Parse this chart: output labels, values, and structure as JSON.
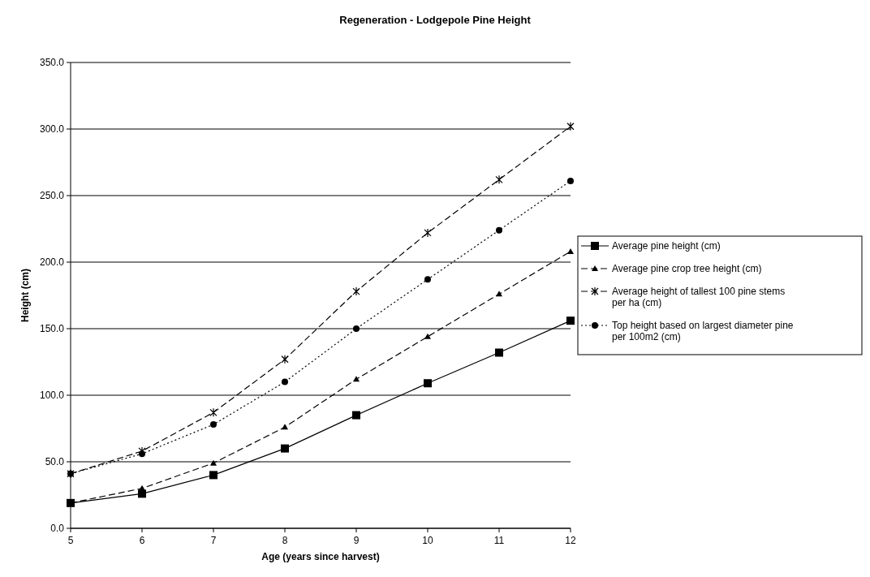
{
  "chart_data": {
    "type": "line",
    "title": "Regeneration - Lodgepole Pine Height",
    "xlabel": "Age (years since harvest)",
    "ylabel": "Height (cm)",
    "x": [
      5,
      6,
      7,
      8,
      9,
      10,
      11,
      12
    ],
    "xlim": [
      5,
      12
    ],
    "xticks": [
      5,
      6,
      7,
      8,
      9,
      10,
      11,
      12
    ],
    "ylim": [
      0,
      350
    ],
    "yticks": [
      {
        "value": 0,
        "label": "0.0"
      },
      {
        "value": 50,
        "label": "50.0"
      },
      {
        "value": 100,
        "label": "100.0"
      },
      {
        "value": 150,
        "label": "150.0"
      },
      {
        "value": 200,
        "label": "200.0"
      },
      {
        "value": 250,
        "label": "250.0"
      },
      {
        "value": 300,
        "label": "300.0"
      },
      {
        "value": 350,
        "label": "350.0"
      }
    ],
    "grid": "y",
    "legend": "right",
    "series": [
      {
        "name": "Average pine height (cm)",
        "color": "#000000",
        "marker": "square",
        "line_style": "solid",
        "values": [
          19,
          26,
          40,
          60,
          85,
          109,
          132,
          156
        ]
      },
      {
        "name": "Average pine crop tree height (cm)",
        "color": "#000000",
        "marker": "triangle",
        "line_style": "dashed",
        "values": [
          19,
          30,
          49,
          76,
          112,
          144,
          176,
          208
        ]
      },
      {
        "name": "Average height of tallest 100 pine stems per ha (cm)",
        "color": "#000000",
        "marker": "cross",
        "line_style": "dashed",
        "values": [
          41,
          58,
          87,
          127,
          178,
          222,
          262,
          302
        ]
      },
      {
        "name": "Top height based on largest diameter pine per 100m2 (cm)",
        "color": "#000000",
        "marker": "circle",
        "line_style": "dotted",
        "values": [
          41,
          56,
          78,
          110,
          150,
          187,
          224,
          261
        ]
      }
    ]
  }
}
